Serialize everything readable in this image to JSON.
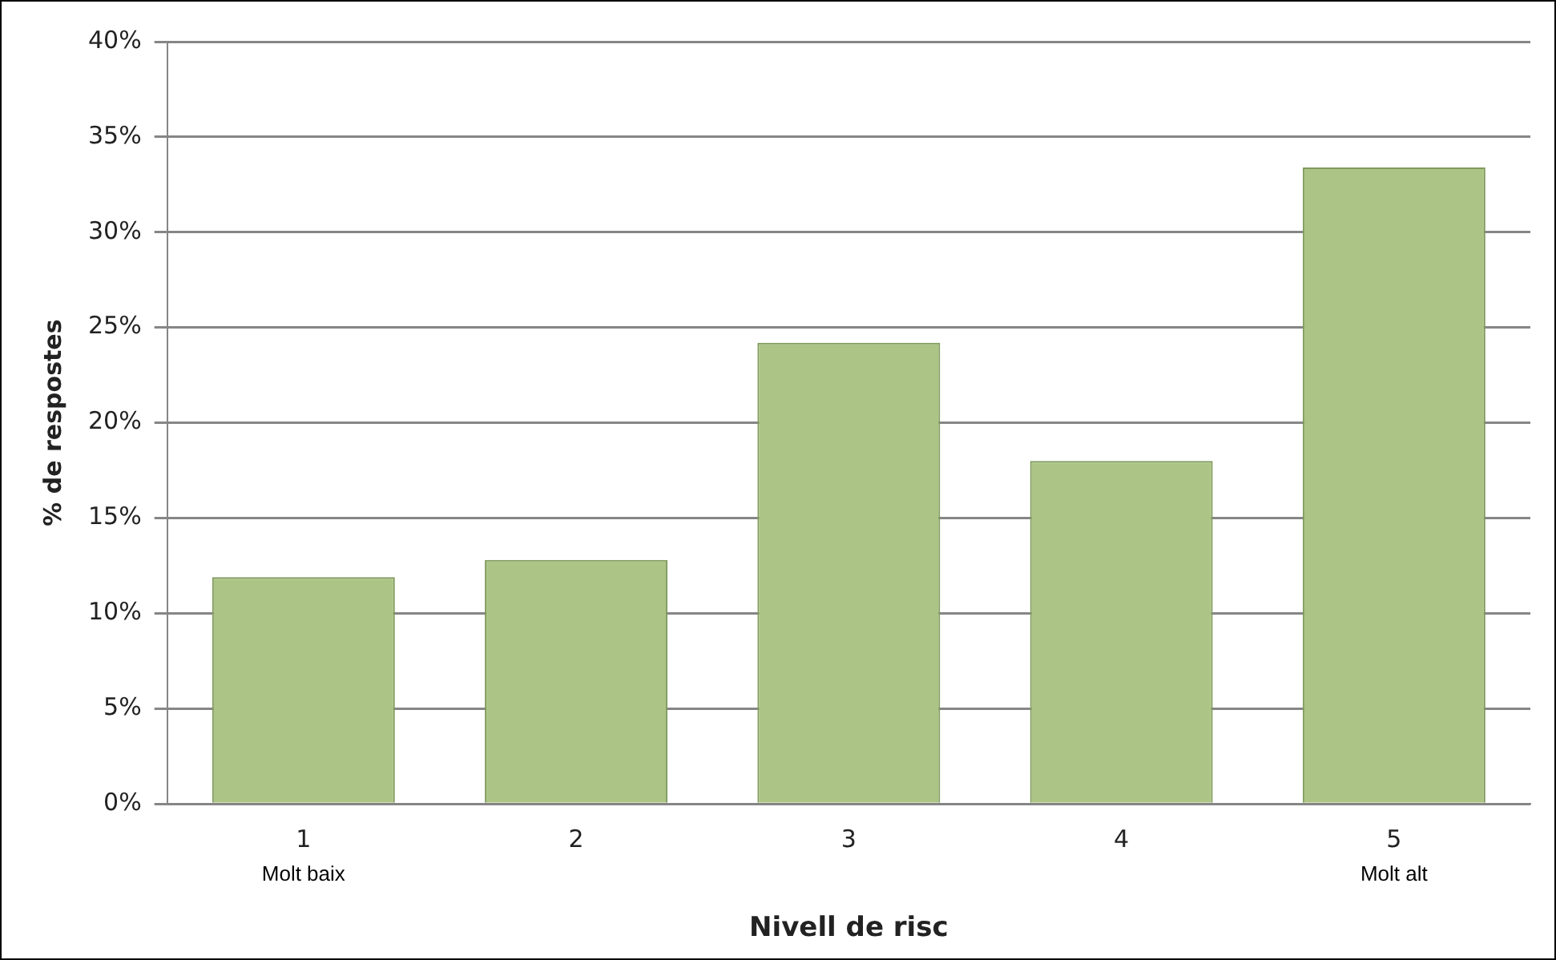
{
  "chart_data": {
    "type": "bar",
    "xlabel": "Nivell de risc",
    "ylabel": "% de respostes",
    "categories": [
      "1",
      "2",
      "3",
      "4",
      "5"
    ],
    "values": [
      11.9,
      12.8,
      24.2,
      18.0,
      33.4
    ],
    "color": "#adc487",
    "ylim": [
      0,
      40
    ],
    "yticks": [
      {
        "value": 0,
        "label": "0%"
      },
      {
        "value": 5,
        "label": "5%"
      },
      {
        "value": 10,
        "label": "10%"
      },
      {
        "value": 15,
        "label": "15%"
      },
      {
        "value": 20,
        "label": "20%"
      },
      {
        "value": 25,
        "label": "25%"
      },
      {
        "value": 30,
        "label": "30%"
      },
      {
        "value": 35,
        "label": "35%"
      },
      {
        "value": 40,
        "label": "40%"
      }
    ],
    "grid": "y",
    "legend": false,
    "annotations": [
      "Molt baix",
      "Molt alt"
    ]
  }
}
